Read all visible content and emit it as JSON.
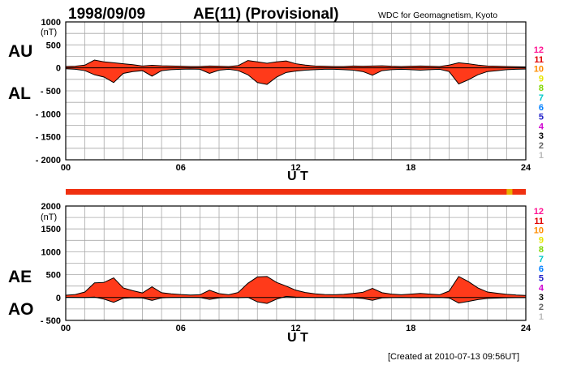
{
  "header": {
    "date": "1998/09/09",
    "title": "AE(11) (Provisional)",
    "source": "WDC for Geomagnetism, Kyoto"
  },
  "footer": {
    "created": "[Created at 2010-07-13 09:56UT]"
  },
  "station_count_labels": [
    "12",
    "11",
    "10",
    "9",
    "8",
    "7",
    "6",
    "5",
    "4",
    "3",
    "2",
    "1"
  ],
  "station_count_colors": [
    "#ff1493",
    "#e00000",
    "#ff8c00",
    "#e6e600",
    "#7fd600",
    "#00c8c8",
    "#0080ff",
    "#1e1ec8",
    "#d000d0",
    "#000000",
    "#666666",
    "#bbbbbb"
  ],
  "bar_colors": {
    "main": "#f03010",
    "accent": "#e8b000"
  },
  "station_bar": {
    "accent_start_hour": 23.0,
    "accent_end_hour": 23.3
  },
  "chart_data": [
    {
      "type": "area",
      "panel": "AU/AL",
      "labels": [
        "AU",
        "AL"
      ],
      "unit": "(nT)",
      "xlabel": "U T",
      "ylim": [
        -2000,
        1000
      ],
      "yticks": [
        1000,
        500,
        0,
        -500,
        -1000,
        -1500,
        -2000
      ],
      "ytick_labels": [
        "1000",
        "500",
        "0",
        "- 500",
        "- 1000",
        "- 1500",
        "- 2000"
      ],
      "xlim": [
        0,
        24
      ],
      "xticks": [
        0,
        6,
        12,
        18,
        24
      ],
      "xtick_labels": [
        "00",
        "06",
        "12",
        "18",
        "24"
      ],
      "grid": true,
      "fill_color": "#ff3a1a",
      "x": [
        0,
        0.5,
        1,
        1.5,
        2,
        2.5,
        3,
        3.5,
        4,
        4.5,
        5,
        5.5,
        6,
        6.5,
        7,
        7.5,
        8,
        8.5,
        9,
        9.5,
        10,
        10.5,
        11,
        11.5,
        12,
        12.5,
        13,
        13.5,
        14,
        14.5,
        15,
        15.5,
        16,
        16.5,
        17,
        17.5,
        18,
        18.5,
        19,
        19.5,
        20,
        20.5,
        21,
        21.5,
        22,
        22.5,
        23,
        23.5,
        24
      ],
      "series": [
        {
          "name": "AU",
          "values": [
            30,
            35,
            60,
            170,
            130,
            110,
            90,
            70,
            40,
            55,
            45,
            40,
            35,
            30,
            30,
            40,
            35,
            30,
            50,
            160,
            130,
            100,
            130,
            150,
            90,
            60,
            40,
            35,
            30,
            30,
            40,
            35,
            40,
            45,
            35,
            30,
            35,
            40,
            35,
            30,
            60,
            110,
            90,
            60,
            40,
            35,
            30,
            25,
            20
          ]
        },
        {
          "name": "AL",
          "values": [
            -20,
            -30,
            -60,
            -150,
            -200,
            -320,
            -120,
            -80,
            -60,
            -180,
            -60,
            -40,
            -30,
            -25,
            -30,
            -120,
            -50,
            -30,
            -60,
            -150,
            -320,
            -360,
            -200,
            -100,
            -70,
            -50,
            -40,
            -30,
            -30,
            -40,
            -50,
            -80,
            -160,
            -60,
            -40,
            -30,
            -40,
            -50,
            -40,
            -30,
            -80,
            -350,
            -260,
            -150,
            -80,
            -60,
            -40,
            -30,
            -25
          ]
        }
      ]
    },
    {
      "type": "area",
      "panel": "AE/AO",
      "labels": [
        "AE",
        "AO"
      ],
      "unit": "(nT)",
      "xlabel": "U T",
      "ylim": [
        -500,
        2000
      ],
      "yticks": [
        2000,
        1500,
        1000,
        500,
        0,
        -500
      ],
      "ytick_labels": [
        "2000",
        "1500",
        "1000",
        "500",
        "0",
        "- 500"
      ],
      "xlim": [
        0,
        24
      ],
      "xticks": [
        0,
        6,
        12,
        18,
        24
      ],
      "xtick_labels": [
        "00",
        "06",
        "12",
        "18",
        "24"
      ],
      "grid": true,
      "fill_color": "#ff3a1a",
      "x": [
        0,
        0.5,
        1,
        1.5,
        2,
        2.5,
        3,
        3.5,
        4,
        4.5,
        5,
        5.5,
        6,
        6.5,
        7,
        7.5,
        8,
        8.5,
        9,
        9.5,
        10,
        10.5,
        11,
        11.5,
        12,
        12.5,
        13,
        13.5,
        14,
        14.5,
        15,
        15.5,
        16,
        16.5,
        17,
        17.5,
        18,
        18.5,
        19,
        19.5,
        20,
        20.5,
        21,
        21.5,
        22,
        22.5,
        23,
        23.5,
        24
      ],
      "series": [
        {
          "name": "AE",
          "values": [
            50,
            65,
            120,
            320,
            330,
            430,
            210,
            150,
            100,
            235,
            105,
            80,
            65,
            55,
            60,
            160,
            85,
            60,
            110,
            310,
            450,
            460,
            330,
            250,
            160,
            110,
            80,
            65,
            60,
            70,
            90,
            115,
            200,
            105,
            75,
            60,
            75,
            90,
            75,
            60,
            140,
            460,
            350,
            210,
            120,
            95,
            70,
            55,
            45
          ]
        },
        {
          "name": "AO",
          "values": [
            5,
            3,
            0,
            10,
            -35,
            -105,
            -15,
            -5,
            -10,
            -62,
            -8,
            0,
            3,
            3,
            0,
            -40,
            -8,
            0,
            -5,
            5,
            -95,
            -130,
            -35,
            25,
            10,
            5,
            0,
            3,
            0,
            -5,
            -5,
            -22,
            -60,
            -8,
            -3,
            0,
            -3,
            -5,
            -3,
            0,
            -10,
            -120,
            -85,
            -45,
            -20,
            -12,
            -5,
            -3,
            -3
          ]
        }
      ]
    }
  ]
}
